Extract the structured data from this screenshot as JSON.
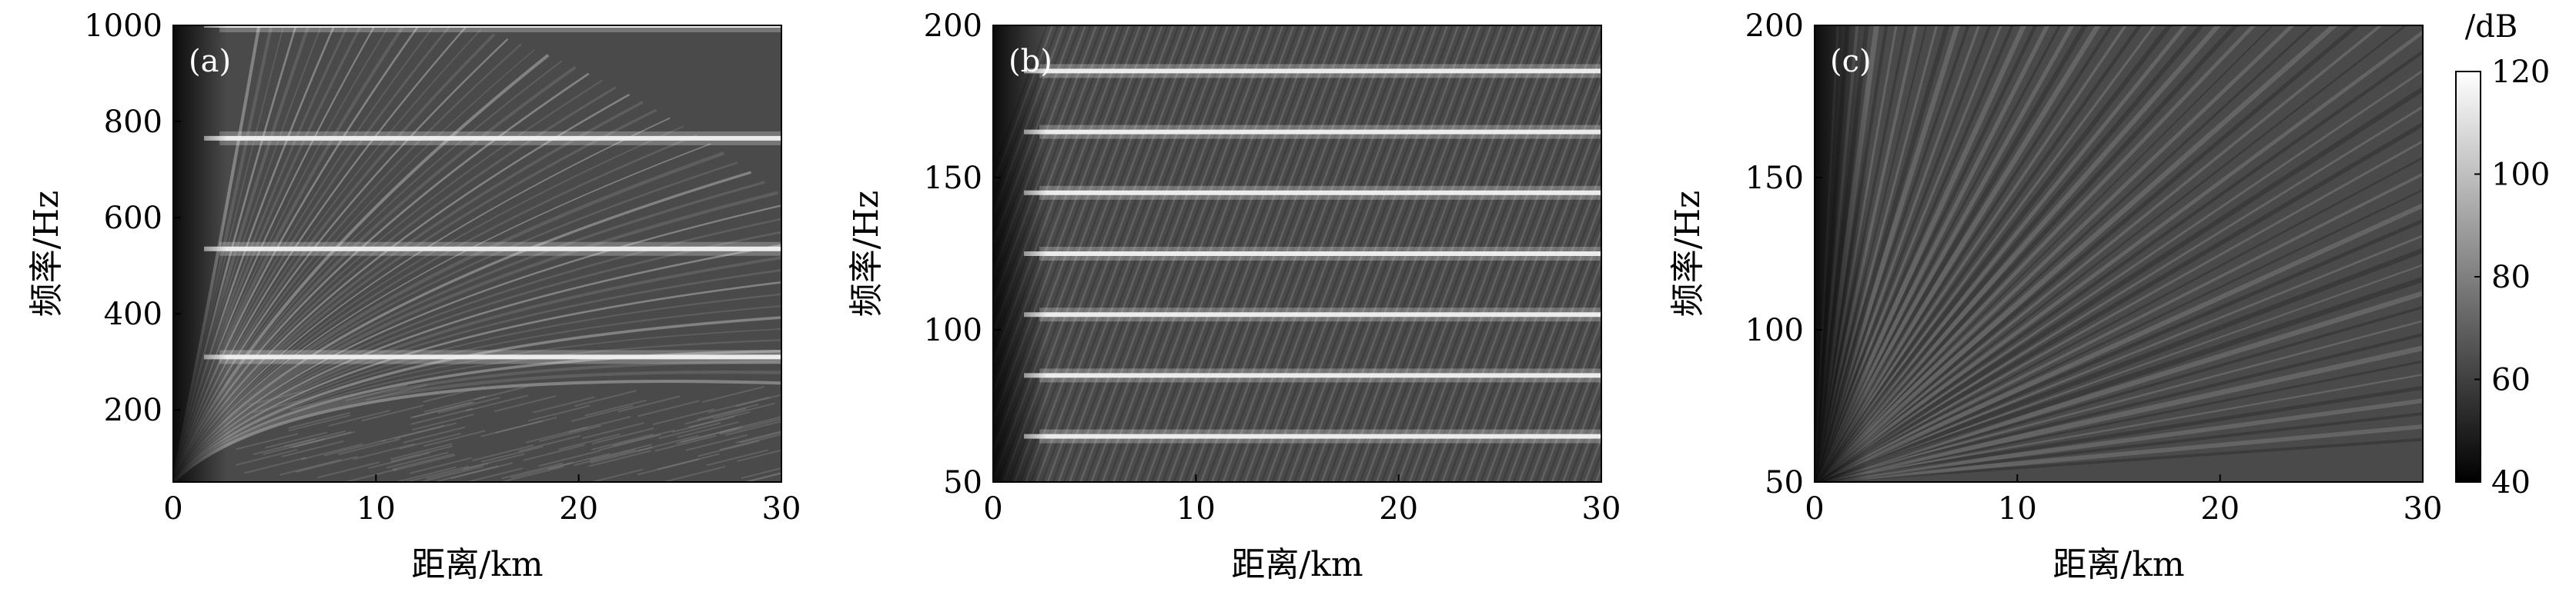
{
  "figure": {
    "chart_data": [
      {
        "type": "heatmap",
        "panel_label": "(a)",
        "xlabel": "距离/km",
        "ylabel": "频率/Hz",
        "xlim": [
          0,
          30
        ],
        "ylim": [
          50,
          1000
        ],
        "x_ticks": [
          0,
          10,
          20,
          30
        ],
        "y_ticks": [
          200,
          400,
          600,
          800,
          1000
        ],
        "bright_frequency_bands_hz": [
          310,
          535,
          765,
          1000
        ],
        "pattern": "interference striations fanning out from near range"
      },
      {
        "type": "heatmap",
        "panel_label": "(b)",
        "xlabel": "距离/km",
        "ylabel": "频率/Hz",
        "xlim": [
          0,
          30
        ],
        "ylim": [
          50,
          200
        ],
        "x_ticks": [
          0,
          10,
          20,
          30
        ],
        "y_ticks": [
          50,
          100,
          150,
          200
        ],
        "bright_frequency_bands_hz": [
          65,
          85,
          105,
          125,
          145,
          165,
          185
        ],
        "pattern": "periodic horizontal bands with diagonal striations"
      },
      {
        "type": "heatmap",
        "panel_label": "(c)",
        "xlabel": "距离/km",
        "ylabel": "频率/Hz",
        "xlim": [
          0,
          30
        ],
        "ylim": [
          50,
          200
        ],
        "x_ticks": [
          0,
          10,
          20,
          30
        ],
        "y_ticks": [
          50,
          100,
          150,
          200
        ],
        "bright_frequency_bands_hz": [],
        "pattern": "fan-shaped striations radiating from origin"
      }
    ],
    "colorbar": {
      "unit_label": "/dB",
      "range": [
        40,
        120
      ],
      "ticks": [
        40,
        60,
        80,
        100,
        120
      ],
      "colormap": "gray",
      "colors": [
        "#000000",
        "#ffffff"
      ]
    }
  }
}
